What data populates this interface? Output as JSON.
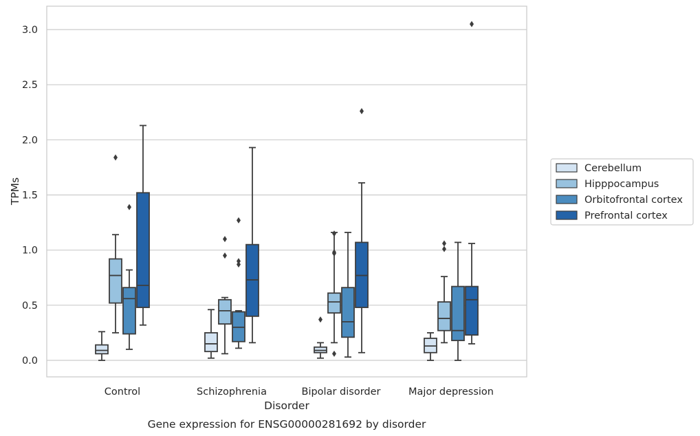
{
  "chart_data": {
    "type": "box",
    "caption": "Gene expression for ENSG00000281692 by disorder",
    "xlabel": "Disorder",
    "ylabel": "TPMs",
    "ylim": [
      -0.15,
      3.2
    ],
    "yticks": [
      0.0,
      0.5,
      1.0,
      1.5,
      2.0,
      2.5,
      3.0
    ],
    "ytick_labels": [
      "0.0",
      "0.5",
      "1.0",
      "1.5",
      "2.0",
      "2.5",
      "3.0"
    ],
    "grid": "horizontal",
    "legend_position": "right",
    "categories": [
      "Control",
      "Schizophrenia",
      "Bipolar disorder",
      "Major depression"
    ],
    "series": [
      {
        "name": "Cerebellum",
        "color": "#d4e4f3",
        "boxes": [
          {
            "whislo": 0.0,
            "q1": 0.06,
            "med": 0.09,
            "q3": 0.14,
            "whishi": 0.26,
            "fliers": []
          },
          {
            "whislo": 0.02,
            "q1": 0.08,
            "med": 0.15,
            "q3": 0.25,
            "whishi": 0.46,
            "fliers": []
          },
          {
            "whislo": 0.02,
            "q1": 0.07,
            "med": 0.09,
            "q3": 0.12,
            "whishi": 0.16,
            "fliers": [
              0.37
            ]
          },
          {
            "whislo": 0.0,
            "q1": 0.07,
            "med": 0.13,
            "q3": 0.2,
            "whishi": 0.25,
            "fliers": []
          }
        ]
      },
      {
        "name": "Hipppocampus",
        "color": "#98c2df",
        "boxes": [
          {
            "whislo": 0.25,
            "q1": 0.52,
            "med": 0.77,
            "q3": 0.92,
            "whishi": 1.14,
            "fliers": [
              1.84
            ]
          },
          {
            "whislo": 0.06,
            "q1": 0.33,
            "med": 0.45,
            "q3": 0.55,
            "whishi": 0.57,
            "fliers": [
              0.95,
              1.1
            ]
          },
          {
            "whislo": 0.16,
            "q1": 0.43,
            "med": 0.53,
            "q3": 0.61,
            "whishi": 1.16,
            "fliers": [
              0.06,
              0.97,
              0.98,
              1.15
            ]
          },
          {
            "whislo": 0.16,
            "q1": 0.27,
            "med": 0.38,
            "q3": 0.53,
            "whishi": 0.76,
            "fliers": [
              1.01,
              1.06
            ]
          }
        ]
      },
      {
        "name": "Orbitofrontal cortex",
        "color": "#4b8cbf",
        "boxes": [
          {
            "whislo": 0.1,
            "q1": 0.24,
            "med": 0.56,
            "q3": 0.66,
            "whishi": 0.82,
            "fliers": [
              1.39
            ]
          },
          {
            "whislo": 0.11,
            "q1": 0.17,
            "med": 0.3,
            "q3": 0.44,
            "whishi": 0.45,
            "fliers": [
              0.87,
              0.9,
              1.27
            ]
          },
          {
            "whislo": 0.03,
            "q1": 0.21,
            "med": 0.35,
            "q3": 0.66,
            "whishi": 1.16,
            "fliers": []
          },
          {
            "whislo": 0.0,
            "q1": 0.18,
            "med": 0.27,
            "q3": 0.67,
            "whishi": 1.07,
            "fliers": []
          }
        ]
      },
      {
        "name": "Prefrontal cortex",
        "color": "#2463a8",
        "boxes": [
          {
            "whislo": 0.32,
            "q1": 0.48,
            "med": 0.68,
            "q3": 1.52,
            "whishi": 2.13,
            "fliers": []
          },
          {
            "whislo": 0.16,
            "q1": 0.4,
            "med": 0.73,
            "q3": 1.05,
            "whishi": 1.93,
            "fliers": []
          },
          {
            "whislo": 0.07,
            "q1": 0.48,
            "med": 0.77,
            "q3": 1.07,
            "whishi": 1.61,
            "fliers": [
              2.26
            ]
          },
          {
            "whislo": 0.15,
            "q1": 0.23,
            "med": 0.55,
            "q3": 0.67,
            "whishi": 1.06,
            "fliers": [
              3.05
            ]
          }
        ]
      }
    ]
  }
}
